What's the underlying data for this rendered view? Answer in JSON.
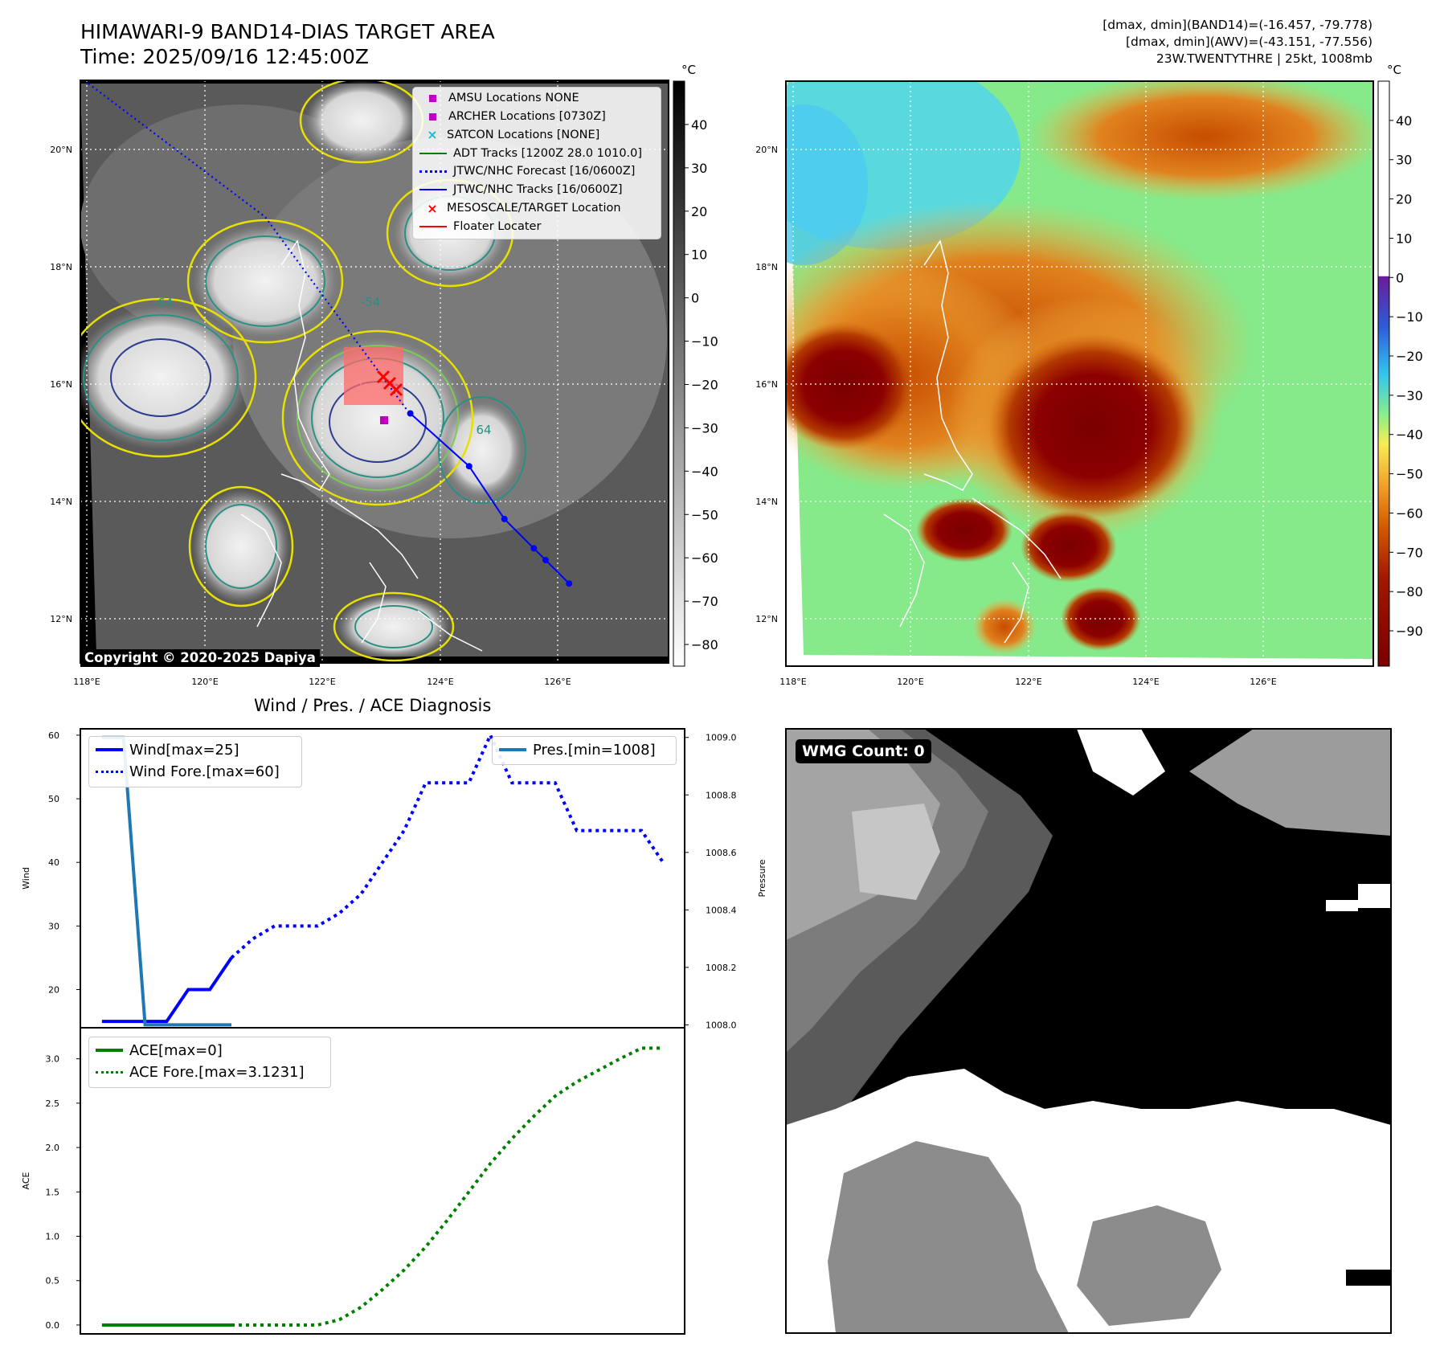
{
  "header": {
    "title": "HIMAWARI-9 BAND14-DIAS TARGET AREA",
    "time": "Time: 2025/09/16 12:45:00Z",
    "info_line1": "[dmax, dmin](BAND14)=(-16.457, -79.778)",
    "info_line2": "[dmax, dmin](AWV)=(-43.151, -77.556)",
    "info_line3": "23W.TWENTYTHRE | 25kt, 1008mb"
  },
  "map_ir": {
    "lon_ticks": [
      "118°E",
      "120°E",
      "122°E",
      "124°E",
      "126°E"
    ],
    "lat_ticks": [
      "20°N",
      "18°N",
      "16°N",
      "14°N",
      "12°N"
    ],
    "colorbar_unit": "°C",
    "colorbar_ticks": [
      "40",
      "30",
      "20",
      "10",
      "0",
      "−10",
      "−20",
      "−30",
      "−40",
      "−50",
      "−60",
      "−70",
      "−80"
    ],
    "copyright": "Copyright © 2020-2025 Dapiya",
    "contour_labels": [
      "-64",
      "-54",
      "64"
    ],
    "legend": [
      {
        "label": "AMSU Locations NONE",
        "color": "#c000c0",
        "marker": "square"
      },
      {
        "label": "ARCHER Locations [0730Z]",
        "color": "#c000c0",
        "marker": "square"
      },
      {
        "label": "SATCON Locations [NONE]",
        "color": "#17becf",
        "marker": "x"
      },
      {
        "label": "ADT Tracks [1200Z 28.0 1010.0]",
        "color": "#008000",
        "marker": "line"
      },
      {
        "label": "JTWC/NHC Forecast [16/0600Z]",
        "color": "#0000ff",
        "marker": "dotted"
      },
      {
        "label": "JTWC/NHC Tracks [16/0600Z]",
        "color": "#0000ff",
        "marker": "line-dot"
      },
      {
        "label": "MESOSCALE/TARGET Location",
        "color": "#ff0000",
        "marker": "x"
      },
      {
        "label": "Floater Locater",
        "color": "#ff0000",
        "marker": "line"
      }
    ],
    "jtwc_track_points": [
      [
        123.5,
        15.5
      ],
      [
        124.5,
        14.6
      ],
      [
        125.1,
        13.7
      ],
      [
        125.6,
        13.2
      ],
      [
        125.8,
        13.0
      ],
      [
        126.2,
        12.6
      ]
    ]
  },
  "map_awv": {
    "lon_ticks": [
      "118°E",
      "120°E",
      "122°E",
      "124°E",
      "126°E"
    ],
    "lat_ticks": [
      "20°N",
      "18°N",
      "16°N",
      "14°N",
      "12°N"
    ],
    "colorbar_unit": "°C",
    "colorbar_ticks": [
      "40",
      "30",
      "20",
      "10",
      "0",
      "−10",
      "−20",
      "−30",
      "−40",
      "−50",
      "−60",
      "−70",
      "−80",
      "−90"
    ]
  },
  "wmg": {
    "label": "WMG Count: 0"
  },
  "chart_data": [
    {
      "type": "line",
      "title": "Wind / Pres. / ACE Diagnosis",
      "ylabel": "Wind",
      "y2label": "Pressure",
      "ylim": [
        14,
        61
      ],
      "y2lim": [
        1007.99,
        1009.03
      ],
      "yticks": [
        20,
        30,
        40,
        50,
        60
      ],
      "y2ticks": [
        "1008.0",
        "1008.2",
        "1008.4",
        "1008.6",
        "1008.8",
        "1009.0"
      ],
      "xlim": [
        0,
        28
      ],
      "series": [
        {
          "name": "Wind[max=25]",
          "color": "#0000ff",
          "style": "solid",
          "x": [
            1,
            2,
            3,
            4,
            5,
            6,
            7
          ],
          "y": [
            15,
            15,
            15,
            15,
            20,
            20,
            25
          ]
        },
        {
          "name": "Wind Fore.[max=60]",
          "color": "#0000ff",
          "style": "dotted",
          "x": [
            7,
            8,
            9,
            10,
            11,
            12,
            13,
            14,
            15,
            16,
            17,
            18,
            19,
            20,
            21,
            22,
            23,
            24,
            25,
            26,
            27
          ],
          "y": [
            25,
            28,
            30,
            30,
            30,
            32,
            35,
            40,
            45,
            52.5,
            52.5,
            52.5,
            60,
            52.5,
            52.5,
            52.5,
            45,
            45,
            45,
            45,
            40
          ]
        },
        {
          "name": "Pres.[min=1008]",
          "color": "#1f77b4",
          "style": "solid",
          "axis": "right",
          "x": [
            1,
            2,
            3,
            4,
            5,
            6,
            7
          ],
          "y": [
            1009.0,
            1009.0,
            1008.0,
            1008.0,
            1008.0,
            1008.0,
            1008.0
          ]
        }
      ]
    },
    {
      "type": "line",
      "ylabel": "ACE",
      "ylim": [
        -0.1,
        3.35
      ],
      "yticks": [
        "0.0",
        "0.5",
        "1.0",
        "1.5",
        "2.0",
        "2.5",
        "3.0"
      ],
      "xlim": [
        0,
        28
      ],
      "series": [
        {
          "name": "ACE[max=0]",
          "color": "#008000",
          "style": "solid",
          "x": [
            1,
            2,
            3,
            4,
            5,
            6,
            7
          ],
          "y": [
            0,
            0,
            0,
            0,
            0,
            0,
            0
          ]
        },
        {
          "name": "ACE Fore.[max=3.1231]",
          "color": "#008000",
          "style": "dotted",
          "x": [
            7,
            8,
            9,
            10,
            11,
            12,
            13,
            14,
            15,
            16,
            17,
            18,
            19,
            20,
            21,
            22,
            23,
            24,
            25,
            26,
            27
          ],
          "y": [
            0,
            0,
            0,
            0,
            0,
            0.06,
            0.2,
            0.4,
            0.62,
            0.88,
            1.18,
            1.5,
            1.82,
            2.1,
            2.35,
            2.58,
            2.74,
            2.87,
            3.0,
            3.12,
            3.12
          ]
        }
      ]
    }
  ]
}
